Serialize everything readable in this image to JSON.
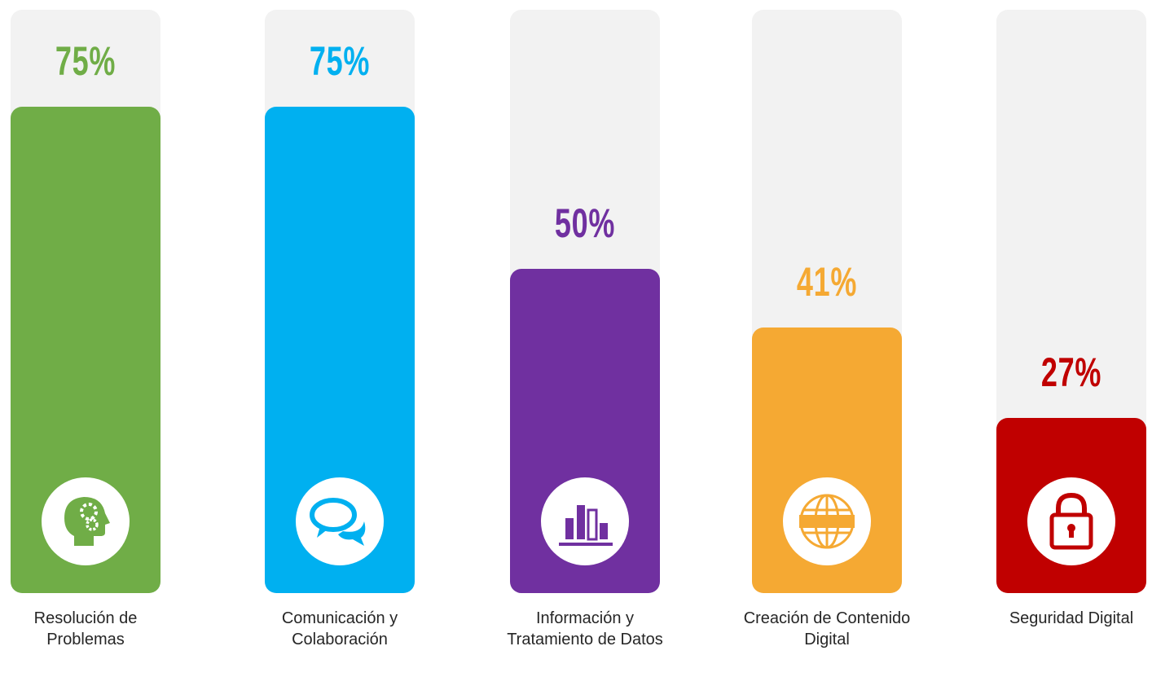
{
  "chart_data": {
    "type": "bar",
    "categories": [
      "Resolución de Problemas",
      "Comunicación y Colaboración",
      "Información y Tratamiento de Datos",
      "Creación de Contenido Digital",
      "Seguridad Digital"
    ],
    "values": [
      75,
      75,
      50,
      41,
      27
    ],
    "value_labels": [
      "75%",
      "75%",
      "50%",
      "41%",
      "27%"
    ],
    "colors": [
      "#70ad47",
      "#00b0f0",
      "#7030a0",
      "#f5a933",
      "#c00000"
    ],
    "ylim": [
      0,
      90
    ]
  }
}
